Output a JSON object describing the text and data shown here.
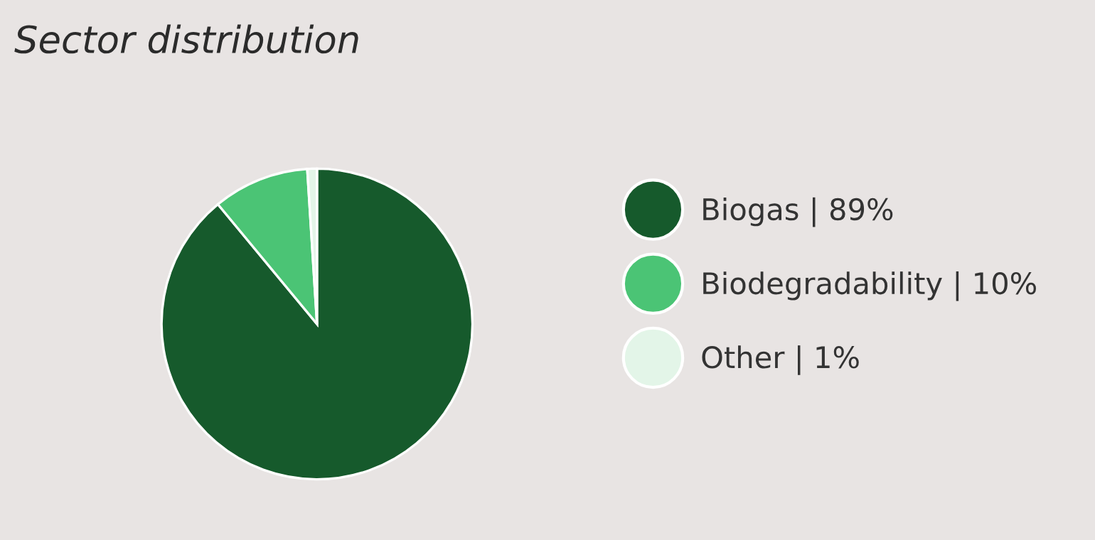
{
  "chart_data": {
    "type": "pie",
    "title": "Sector distribution",
    "categories": [
      "Biogas | 89%",
      "Biodegradability | 10%",
      "Other | 1%"
    ],
    "values": [
      89,
      10,
      1
    ],
    "colors": [
      "#165a2c",
      "#4bc475",
      "#e3f5e8"
    ],
    "legend": "right"
  }
}
